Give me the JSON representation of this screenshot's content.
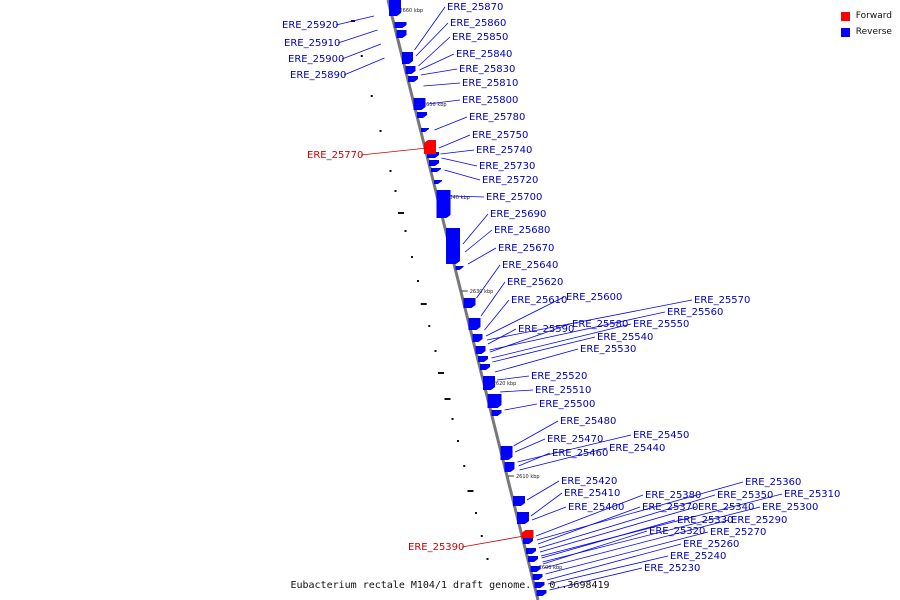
{
  "caption": "Eubacterium rectale M104/1 draft genome. - 0..3698419",
  "legend": [
    {
      "label": "Forward",
      "color": "#ff0000"
    },
    {
      "label": "Reverse",
      "color": "#0000ff"
    }
  ],
  "strand_colors": {
    "forward": "#ff0000",
    "reverse": "#0000ff",
    "forward_label": "#cc0000",
    "reverse_label": "#0000bb"
  },
  "ticks": [
    "2660 kbp",
    "2650 kbp",
    "2640 kbp",
    "2630 kbp",
    "2620 kbp",
    "2610 kbp",
    "2600 kbp"
  ],
  "genes_reverse": [
    "ERE_25870",
    "ERE_25860",
    "ERE_25850",
    "ERE_25840",
    "ERE_25830",
    "ERE_25810",
    "ERE_25800",
    "ERE_25780",
    "ERE_25750",
    "ERE_25740",
    "ERE_25730",
    "ERE_25720",
    "ERE_25700",
    "ERE_25690",
    "ERE_25680",
    "ERE_25670",
    "ERE_25640",
    "ERE_25620",
    "ERE_25610",
    "ERE_25600",
    "ERE_25590",
    "ERE_25580",
    "ERE_25570",
    "ERE_25560",
    "ERE_25550",
    "ERE_25540",
    "ERE_25530",
    "ERE_25520",
    "ERE_25510",
    "ERE_25500",
    "ERE_25480",
    "ERE_25470",
    "ERE_25460",
    "ERE_25450",
    "ERE_25440",
    "ERE_25420",
    "ERE_25410",
    "ERE_25400",
    "ERE_25380",
    "ERE_25370",
    "ERE_25360",
    "ERE_25350",
    "ERE_25340",
    "ERE_25330",
    "ERE_25320",
    "ERE_25310",
    "ERE_25300",
    "ERE_25290",
    "ERE_25270",
    "ERE_25260",
    "ERE_25240",
    "ERE_25230"
  ],
  "genes_left_reverse": [
    "ERE_25920",
    "ERE_25910",
    "ERE_25900",
    "ERE_25890"
  ],
  "genes_forward": [
    "ERE_25770",
    "ERE_25390"
  ]
}
